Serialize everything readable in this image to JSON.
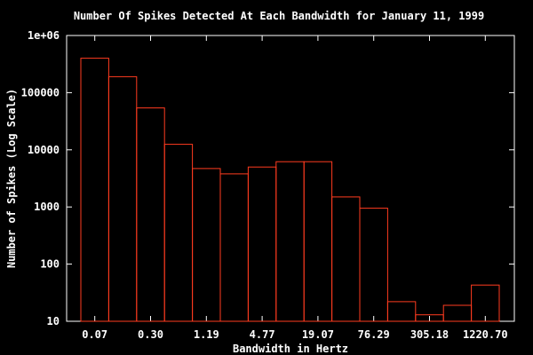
{
  "chart_data": {
    "type": "bar",
    "title": "Number Of Spikes Detected At Each Bandwidth for January 11, 1999",
    "xlabel": "Bandwidth in Hertz",
    "ylabel": "Number of Spikes (Log Scale)",
    "y_scale": "log",
    "ylim": [
      10,
      1000000
    ],
    "y_ticks": [
      "10",
      "100",
      "1000",
      "10000",
      "100000",
      "1e+06"
    ],
    "x_tick_labels": [
      "0.07",
      "0.30",
      "1.19",
      "4.77",
      "19.07",
      "76.29",
      "305.18",
      "1220.70"
    ],
    "values": [
      400000,
      190000,
      54000,
      12500,
      4700,
      3800,
      5000,
      6200,
      6200,
      1500,
      950,
      22,
      13,
      19,
      43
    ],
    "bar_color": "#ff3b1f",
    "background": "#000000",
    "grid": false
  }
}
